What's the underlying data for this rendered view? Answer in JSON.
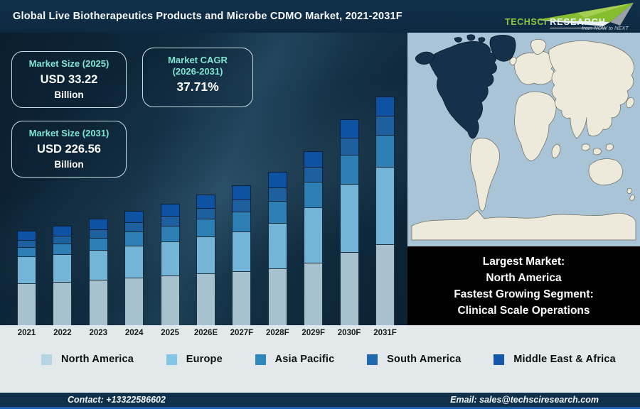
{
  "header": {
    "title": "Global Live Biotherapeutics Products and Microbe CDMO Market, 2021-2031F",
    "logo": {
      "brand_primary": "TechSci",
      "brand_secondary": "Research",
      "tagline": "from NOW to NEXT"
    }
  },
  "stats": [
    {
      "label": "Market Size (2025)",
      "value": "USD 33.22",
      "unit": "Billion"
    },
    {
      "label": "Market CAGR",
      "label2": "(2026-2031)",
      "value": "37.71%"
    },
    {
      "label": "Market Size (2031)",
      "value": "USD 226.56",
      "unit": "Billion"
    }
  ],
  "chart_data": {
    "type": "bar",
    "stacked": true,
    "title": "Global Live Biotherapeutics Products and Microbe CDMO Market, 2021-2031F",
    "categories": [
      "2021",
      "2022",
      "2023",
      "2024",
      "2025",
      "2026E",
      "2027F",
      "2028F",
      "2029F",
      "2030F",
      "2031F"
    ],
    "series": [
      {
        "name": "North America",
        "color": "#a7c2ce",
        "values": [
          59,
          61,
          64,
          67,
          70,
          73,
          76,
          80,
          88,
          103,
          114
        ]
      },
      {
        "name": "Europe",
        "color": "#74b4d7",
        "values": [
          38,
          39,
          42,
          45,
          48,
          52,
          56,
          64,
          78,
          96,
          109
        ]
      },
      {
        "name": "Asia Pacific",
        "color": "#2e80b4",
        "values": [
          13,
          15,
          17,
          20,
          22,
          25,
          28,
          31,
          36,
          41,
          45
        ]
      },
      {
        "name": "South America",
        "color": "#1d5f9f",
        "values": [
          10,
          11,
          12,
          13,
          14,
          15,
          17,
          19,
          21,
          24,
          27
        ]
      },
      {
        "name": "Middle East & Africa",
        "color": "#0e52a4",
        "values": [
          13,
          14,
          15,
          16,
          17,
          19,
          20,
          22,
          22,
          26,
          27
        ]
      }
    ],
    "value_note": "No y-axis shown in source; values are relative stacked heights (px) read from the image. Known totals: 2025 = USD 33.22 Billion, 2031 = USD 226.56 Billion, CAGR 2026-2031 = 37.71%",
    "xlabel": "",
    "ylabel": "",
    "grid": false,
    "legend_position": "bottom"
  },
  "map": {
    "highlight": "North America",
    "ocean_color": "#a9c4d6",
    "land_color": "#edeadb",
    "highlight_color": "#15304a"
  },
  "callout": {
    "lines": [
      "Largest Market:",
      "North America",
      "Fastest Growing Segment:",
      "Clinical Scale Operations"
    ]
  },
  "legend": {
    "items": [
      {
        "label": "North America",
        "color": "#b7d4e2"
      },
      {
        "label": "Europe",
        "color": "#82c5e4"
      },
      {
        "label": "Asia Pacific",
        "color": "#2e86ba"
      },
      {
        "label": "South America",
        "color": "#1e69b0"
      },
      {
        "label": "Middle East & Africa",
        "color": "#1156a8"
      }
    ]
  },
  "footer": {
    "contact": "Contact: +13322586602",
    "email": "Email: sales@techsciresearch.com"
  }
}
